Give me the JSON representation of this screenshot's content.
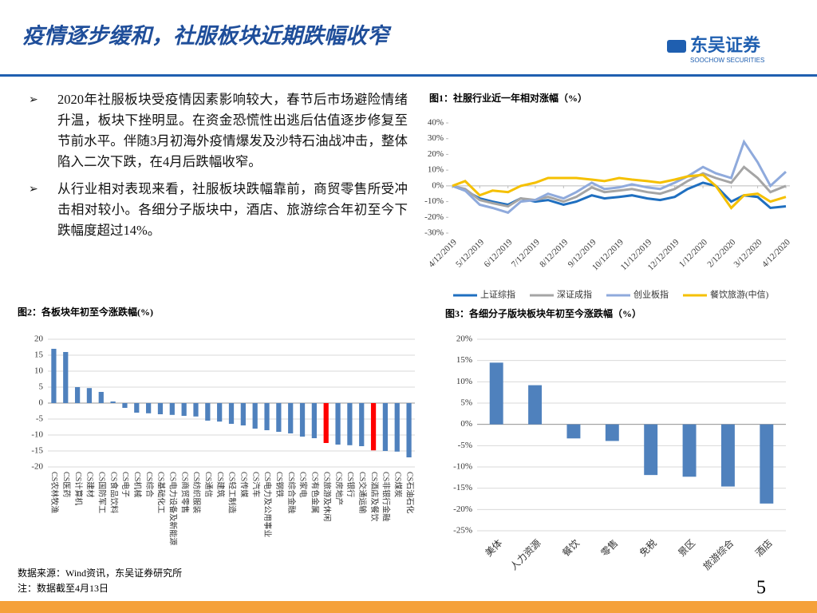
{
  "header": {
    "title": "疫情逐步缓和，社服板块近期跌幅收窄",
    "logo": "东吴证券",
    "logo_en": "SOOCHOW SECURITIES"
  },
  "bullets": [
    "2020年社服板块受疫情因素影响较大，春节后市场避险情绪升温，板块下挫明显。在资金恐慌性出逃后估值逐步修复至节前水平。伴随3月初海外疫情爆发及沙特石油战冲击，整体陷入二次下跌，在4月后跌幅收窄。",
    "从行业相对表现来看，社服板块跌幅靠前，商贸零售所受冲击相对较小。各细分子版块中，酒店、旅游综合年初至今下跌幅度超过14%。"
  ],
  "footer": {
    "source": "数据来源：Wind资讯，东吴证券研究所",
    "note": "注：数据截至4月13日",
    "page": "5"
  },
  "chart_data": [
    {
      "type": "line",
      "title": "图1：社服行业近一年相对涨幅（%）",
      "x": [
        "4/12/2019",
        "4/26/2019",
        "5/12/2019",
        "5/26/2019",
        "6/12/2019",
        "6/26/2019",
        "7/12/2019",
        "7/26/2019",
        "8/12/2019",
        "8/26/2019",
        "9/12/2019",
        "9/26/2019",
        "10/12/2019",
        "10/26/2019",
        "11/12/2019",
        "11/26/2019",
        "12/12/2019",
        "12/26/2019",
        "1/12/2020",
        "1/26/2020",
        "2/12/2020",
        "2/26/2020",
        "3/12/2020",
        "3/26/2020",
        "4/12/2020"
      ],
      "xlim": [
        "4/12/2019",
        "4/12/2020"
      ],
      "xticks": [
        "4/12/2019",
        "5/12/2019",
        "6/12/2019",
        "7/12/2019",
        "8/12/2019",
        "9/12/2019",
        "10/12/2019",
        "11/12/2019",
        "12/12/2019",
        "1/12/2020",
        "2/12/2020",
        "3/12/2020",
        "4/12/2020"
      ],
      "ylim": [
        -30,
        40
      ],
      "yticks": [
        {
          "value": 40,
          "label": "40%"
        },
        {
          "value": 30,
          "label": "30%"
        },
        {
          "value": 20,
          "label": "20%"
        },
        {
          "value": 10,
          "label": "10%"
        },
        {
          "value": 0,
          "label": "0%"
        },
        {
          "value": -10,
          "label": "-10%"
        },
        {
          "value": -20,
          "label": "-20%"
        },
        {
          "value": -30,
          "label": "-30%"
        }
      ],
      "grid": false,
      "series": [
        {
          "name": "上证综指",
          "color": "#1f6fc0",
          "values": [
            0,
            -3,
            -8,
            -10,
            -12,
            -8,
            -10,
            -9,
            -12,
            -10,
            -6,
            -8,
            -7,
            -6,
            -8,
            -9,
            -7,
            -2,
            2,
            0,
            -10,
            -6,
            -7,
            -14,
            -13
          ]
        },
        {
          "name": "深证成指",
          "color": "#a5a5a5",
          "values": [
            0,
            -2,
            -9,
            -11,
            -13,
            -8,
            -9,
            -7,
            -10,
            -7,
            -1,
            -4,
            -3,
            -2,
            -4,
            -5,
            -2,
            3,
            8,
            5,
            2,
            12,
            5,
            -4,
            0
          ]
        },
        {
          "name": "创业板指",
          "color": "#8faadc",
          "values": [
            0,
            -3,
            -12,
            -14,
            -17,
            -10,
            -9,
            -5,
            -8,
            -4,
            2,
            -2,
            -1,
            1,
            -1,
            -2,
            2,
            6,
            12,
            8,
            5,
            28,
            15,
            0,
            9
          ]
        },
        {
          "name": "餐饮旅游(中信)",
          "color": "#f5c000",
          "values": [
            0,
            3,
            -6,
            -3,
            -4,
            0,
            2,
            5,
            5,
            5,
            4,
            3,
            5,
            4,
            3,
            2,
            4,
            6,
            7,
            0,
            -14,
            -6,
            -5,
            -10,
            -7
          ]
        }
      ]
    },
    {
      "type": "bar",
      "title": "图2：各板块年初至今涨跌幅(%)",
      "categories": [
        "CS农林牧渔",
        "CS医药",
        "CS计算机",
        "CS建材",
        "CS国防军工",
        "CS食品饮料",
        "CS电子",
        "CS机械",
        "CS综合",
        "CS基础化工",
        "CS电力设备及新能源",
        "CS商贸零售",
        "CS纺织服装",
        "CS通信",
        "CS建筑",
        "CS轻工制造",
        "CS传媒",
        "CS汽车",
        "CS电力及公用事业",
        "CS钢铁",
        "CS综合金融",
        "CS家电",
        "CS有色金属",
        "CS旅游及休闲",
        "CS房地产",
        "CS银行",
        "CS交通运输",
        "CS酒店及餐饮",
        "CS非银行金融",
        "CS煤炭",
        "CS石油石化"
      ],
      "values": [
        17,
        16,
        5,
        4.7,
        3.5,
        0.5,
        -1.5,
        -3,
        -3.2,
        -3.5,
        -3.7,
        -4,
        -4.2,
        -5.5,
        -5.8,
        -6.5,
        -7,
        -8,
        -8.5,
        -9,
        -9.5,
        -10.5,
        -11,
        -12.5,
        -13,
        -13.2,
        -13.5,
        -14.8,
        -15,
        -15.2,
        -17
      ],
      "colors": [
        "#4f81bd",
        "#4f81bd",
        "#4f81bd",
        "#4f81bd",
        "#4f81bd",
        "#4f81bd",
        "#4f81bd",
        "#4f81bd",
        "#4f81bd",
        "#4f81bd",
        "#4f81bd",
        "#4f81bd",
        "#4f81bd",
        "#4f81bd",
        "#4f81bd",
        "#4f81bd",
        "#4f81bd",
        "#4f81bd",
        "#4f81bd",
        "#4f81bd",
        "#4f81bd",
        "#4f81bd",
        "#4f81bd",
        "#ff0000",
        "#4f81bd",
        "#4f81bd",
        "#4f81bd",
        "#ff0000",
        "#4f81bd",
        "#4f81bd",
        "#4f81bd"
      ],
      "ylim": [
        -20,
        20
      ],
      "yticks": [
        20,
        15,
        10,
        5,
        0,
        -5,
        -10,
        -15,
        -20
      ],
      "grid": true
    },
    {
      "type": "bar",
      "title": "图3：各细分子版块板块年初至今涨跌幅（%）",
      "categories": [
        "美体",
        "人力资源",
        "餐饮",
        "零售",
        "免税",
        "景区",
        "旅游综合",
        "酒店"
      ],
      "values": [
        14.5,
        9.2,
        -3.3,
        -3.9,
        -11.9,
        -12.3,
        -14.6,
        -18.6
      ],
      "color": "#4f81bd",
      "ylim": [
        -25,
        20
      ],
      "yticks": [
        {
          "value": 20,
          "label": "20%"
        },
        {
          "value": 15,
          "label": "15%"
        },
        {
          "value": 10,
          "label": "10%"
        },
        {
          "value": 5,
          "label": "5%"
        },
        {
          "value": 0,
          "label": "0%"
        },
        {
          "value": -5,
          "label": "-5%"
        },
        {
          "value": -10,
          "label": "-10%"
        },
        {
          "value": -15,
          "label": "-15%"
        },
        {
          "value": -20,
          "label": "-20%"
        },
        {
          "value": -25,
          "label": "-25%"
        }
      ],
      "grid": true
    }
  ]
}
